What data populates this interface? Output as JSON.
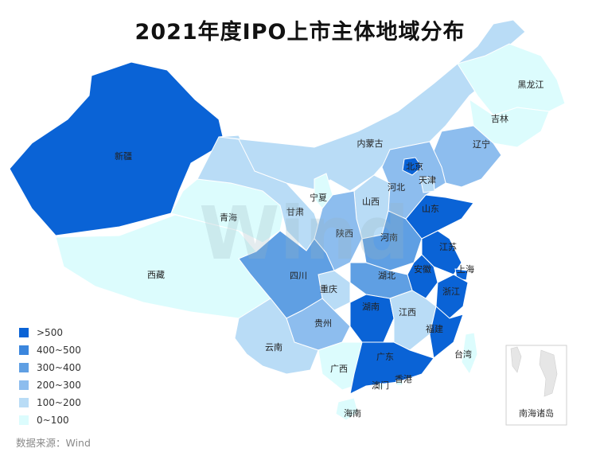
{
  "title": "2021年度IPO上市主体地域分布",
  "source": "数据来源：Wind",
  "watermark": "Wind",
  "legend": [
    {
      "label": ">500",
      "color": "#0a63d6"
    },
    {
      "label": "400~500",
      "color": "#3b86dd"
    },
    {
      "label": "300~400",
      "color": "#5f9fe3"
    },
    {
      "label": "200~300",
      "color": "#8dbdee"
    },
    {
      "label": "100~200",
      "color": "#b9dcf6"
    },
    {
      "label": "0~100",
      "color": "#dcfcfd"
    }
  ],
  "inset": {
    "label": "南海诸岛"
  },
  "regions": [
    {
      "id": "xinjiang",
      "name": "新疆",
      "level": 0
    },
    {
      "id": "xizang",
      "name": "西藏",
      "level": 5
    },
    {
      "id": "qinghai",
      "name": "青海",
      "level": 5
    },
    {
      "id": "gansu",
      "name": "甘肃",
      "level": 4
    },
    {
      "id": "neimenggu",
      "name": "内蒙古",
      "level": 4
    },
    {
      "id": "heilongjiang",
      "name": "黑龙江",
      "level": 5
    },
    {
      "id": "jilin",
      "name": "吉林",
      "level": 5
    },
    {
      "id": "liaoning",
      "name": "辽宁",
      "level": 3
    },
    {
      "id": "beijing",
      "name": "北京",
      "level": 0
    },
    {
      "id": "tianjin",
      "name": "天津",
      "level": 4
    },
    {
      "id": "hebei",
      "name": "河北",
      "level": 3
    },
    {
      "id": "shanxi",
      "name": "山西",
      "level": 4
    },
    {
      "id": "ningxia",
      "name": "宁夏",
      "level": 5
    },
    {
      "id": "shaanxi",
      "name": "陕西",
      "level": 3
    },
    {
      "id": "henan",
      "name": "河南",
      "level": 2
    },
    {
      "id": "shandong",
      "name": "山东",
      "level": 0
    },
    {
      "id": "jiangsu",
      "name": "江苏",
      "level": 0
    },
    {
      "id": "shanghai",
      "name": "上海",
      "level": 0
    },
    {
      "id": "anhui",
      "name": "安徽",
      "level": 0
    },
    {
      "id": "zhejiang",
      "name": "浙江",
      "level": 0
    },
    {
      "id": "hubei",
      "name": "湖北",
      "level": 2
    },
    {
      "id": "sichuan",
      "name": "四川",
      "level": 2
    },
    {
      "id": "chongqing",
      "name": "重庆",
      "level": 4
    },
    {
      "id": "hunan",
      "name": "湖南",
      "level": 0
    },
    {
      "id": "jiangxi",
      "name": "江西",
      "level": 4
    },
    {
      "id": "fujian",
      "name": "福建",
      "level": 0
    },
    {
      "id": "guizhou",
      "name": "贵州",
      "level": 3
    },
    {
      "id": "yunnan",
      "name": "云南",
      "level": 4
    },
    {
      "id": "guangxi",
      "name": "广西",
      "level": 5
    },
    {
      "id": "guangdong",
      "name": "广东",
      "level": 0
    },
    {
      "id": "hainan",
      "name": "海南",
      "level": 5
    },
    {
      "id": "taiwan",
      "name": "台湾",
      "level": 5
    },
    {
      "id": "hongkong",
      "name": "香港",
      "level": 5
    },
    {
      "id": "macau",
      "name": "澳门",
      "level": 5
    }
  ]
}
